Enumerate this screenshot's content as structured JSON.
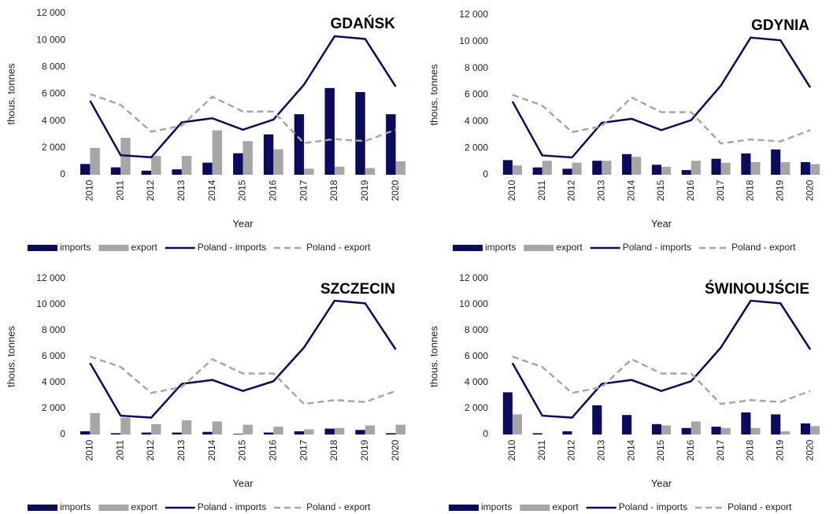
{
  "chart_data": [
    {
      "type": "combo",
      "title": "GDAŃSK",
      "x_label": "Year",
      "y_label": "thous. tonnes",
      "categories": [
        "2010",
        "2011",
        "2012",
        "2013",
        "2014",
        "2015",
        "2016",
        "2017",
        "2018",
        "2019",
        "2020"
      ],
      "ylim": [
        0,
        12000
      ],
      "yticks": [
        0,
        {
          "value": 2000,
          "label": "2 000"
        },
        {
          "value": 4000,
          "label": "4 000"
        },
        {
          "value": 6000,
          "label": "6 000"
        },
        {
          "value": 8000,
          "label": "8 000"
        },
        {
          "value": 10000,
          "label": "10 000"
        },
        {
          "value": 12000,
          "label": "12 000"
        }
      ],
      "grid": false,
      "legend": "bottom",
      "series": [
        {
          "name": "imports",
          "type": "bar",
          "color": "#0b0b5c",
          "values": [
            800,
            550,
            300,
            400,
            900,
            1600,
            3000,
            4500,
            6450,
            6150,
            4500
          ]
        },
        {
          "name": "export",
          "type": "bar",
          "color": "#a6a6a6",
          "values": [
            2000,
            2750,
            1400,
            1400,
            3300,
            2500,
            1900,
            450,
            600,
            500,
            1000
          ]
        },
        {
          "name": "Poland - imports",
          "type": "line",
          "line_style": "solid",
          "color": "#0b0b5c",
          "values": [
            5500,
            1450,
            1300,
            3900,
            4200,
            3350,
            4100,
            6700,
            10300,
            10100,
            6550
          ]
        },
        {
          "name": "Poland - export",
          "type": "line",
          "line_style": "dashed",
          "color": "#a6a6a6",
          "values": [
            6000,
            5200,
            3200,
            3650,
            5800,
            4700,
            4700,
            2350,
            2650,
            2500,
            3350
          ]
        }
      ]
    },
    {
      "type": "combo",
      "title": "GDYNIA",
      "x_label": "Year",
      "y_label": "thous. tonnes",
      "categories": [
        "2010",
        "2011",
        "2012",
        "2013",
        "2014",
        "2015",
        "2016",
        "2017",
        "2018",
        "2019",
        "2020"
      ],
      "ylim": [
        0,
        12000
      ],
      "yticks": [
        0,
        {
          "value": 2000,
          "label": "2 000"
        },
        {
          "value": 4000,
          "label": "4 000"
        },
        {
          "value": 6000,
          "label": "6 000"
        },
        {
          "value": 8000,
          "label": "8 000"
        },
        {
          "value": 10000,
          "label": "10 000"
        },
        {
          "value": 12000,
          "label": "12 000"
        }
      ],
      "grid": false,
      "legend": "bottom",
      "series": [
        {
          "name": "imports",
          "type": "bar",
          "color": "#0b0b5c",
          "values": [
            1100,
            550,
            450,
            1050,
            1550,
            750,
            350,
            1200,
            1600,
            1900,
            950
          ]
        },
        {
          "name": "export",
          "type": "bar",
          "color": "#a6a6a6",
          "values": [
            700,
            1050,
            900,
            1050,
            1350,
            600,
            1050,
            900,
            950,
            950,
            800
          ]
        },
        {
          "name": "Poland - imports",
          "type": "line",
          "line_style": "solid",
          "color": "#0b0b5c",
          "values": [
            5500,
            1450,
            1300,
            3900,
            4200,
            3350,
            4100,
            6700,
            10300,
            10100,
            6550
          ]
        },
        {
          "name": "Poland - export",
          "type": "line",
          "line_style": "dashed",
          "color": "#a6a6a6",
          "values": [
            6000,
            5200,
            3200,
            3650,
            5800,
            4700,
            4700,
            2350,
            2650,
            2500,
            3350
          ]
        }
      ]
    },
    {
      "type": "combo",
      "title": "SZCZECIN",
      "x_label": "Year",
      "y_label": "thous. tonnes",
      "categories": [
        "2010",
        "2011",
        "2012",
        "2013",
        "2014",
        "2015",
        "2016",
        "2017",
        "2018",
        "2019",
        "2020"
      ],
      "ylim": [
        0,
        12000
      ],
      "yticks": [
        0,
        {
          "value": 2000,
          "label": "2 000"
        },
        {
          "value": 4000,
          "label": "4 000"
        },
        {
          "value": 6000,
          "label": "6 000"
        },
        {
          "value": 8000,
          "label": "8 000"
        },
        {
          "value": 10000,
          "label": "10 000"
        },
        {
          "value": 12000,
          "label": "12 000"
        }
      ],
      "grid": false,
      "legend": "bottom",
      "series": [
        {
          "name": "imports",
          "type": "bar",
          "color": "#0b0b5c",
          "values": [
            250,
            100,
            150,
            150,
            200,
            50,
            150,
            250,
            450,
            350,
            100
          ]
        },
        {
          "name": "export",
          "type": "bar",
          "color": "#a6a6a6",
          "values": [
            1650,
            1300,
            800,
            1100,
            1000,
            750,
            600,
            400,
            500,
            700,
            750
          ]
        },
        {
          "name": "Poland - imports",
          "type": "line",
          "line_style": "solid",
          "color": "#0b0b5c",
          "values": [
            5500,
            1450,
            1300,
            3900,
            4200,
            3350,
            4100,
            6700,
            10300,
            10100,
            6550
          ]
        },
        {
          "name": "Poland - export",
          "type": "line",
          "line_style": "dashed",
          "color": "#a6a6a6",
          "values": [
            6000,
            5200,
            3200,
            3650,
            5800,
            4700,
            4700,
            2350,
            2650,
            2500,
            3350
          ]
        }
      ]
    },
    {
      "type": "combo",
      "title": "ŚWINOUJŚCIE",
      "x_label": "Year",
      "y_label": "thous. tonnes",
      "categories": [
        "2010",
        "2011",
        "2012",
        "2013",
        "2014",
        "2015",
        "2016",
        "2017",
        "2018",
        "2019",
        "2020"
      ],
      "ylim": [
        0,
        12000
      ],
      "yticks": [
        0,
        {
          "value": 2000,
          "label": "2 000"
        },
        {
          "value": 4000,
          "label": "4 000"
        },
        {
          "value": 6000,
          "label": "6 000"
        },
        {
          "value": 8000,
          "label": "8 000"
        },
        {
          "value": 10000,
          "label": "10 000"
        },
        {
          "value": 12000,
          "label": "12 000"
        }
      ],
      "grid": false,
      "legend": "bottom",
      "series": [
        {
          "name": "imports",
          "type": "bar",
          "color": "#0b0b5c",
          "values": [
            3250,
            100,
            250,
            2250,
            1500,
            800,
            500,
            600,
            1700,
            1550,
            850
          ]
        },
        {
          "name": "export",
          "type": "bar",
          "color": "#a6a6a6",
          "values": [
            1550,
            0,
            0,
            0,
            0,
            700,
            1000,
            500,
            500,
            250,
            650
          ]
        },
        {
          "name": "Poland - imports",
          "type": "line",
          "line_style": "solid",
          "color": "#0b0b5c",
          "values": [
            5500,
            1450,
            1300,
            3900,
            4200,
            3350,
            4100,
            6700,
            10300,
            10100,
            6550
          ]
        },
        {
          "name": "Poland - export",
          "type": "line",
          "line_style": "dashed",
          "color": "#a6a6a6",
          "values": [
            6000,
            5200,
            3200,
            3650,
            5800,
            4700,
            4700,
            2350,
            2650,
            2500,
            3350
          ]
        }
      ]
    }
  ]
}
